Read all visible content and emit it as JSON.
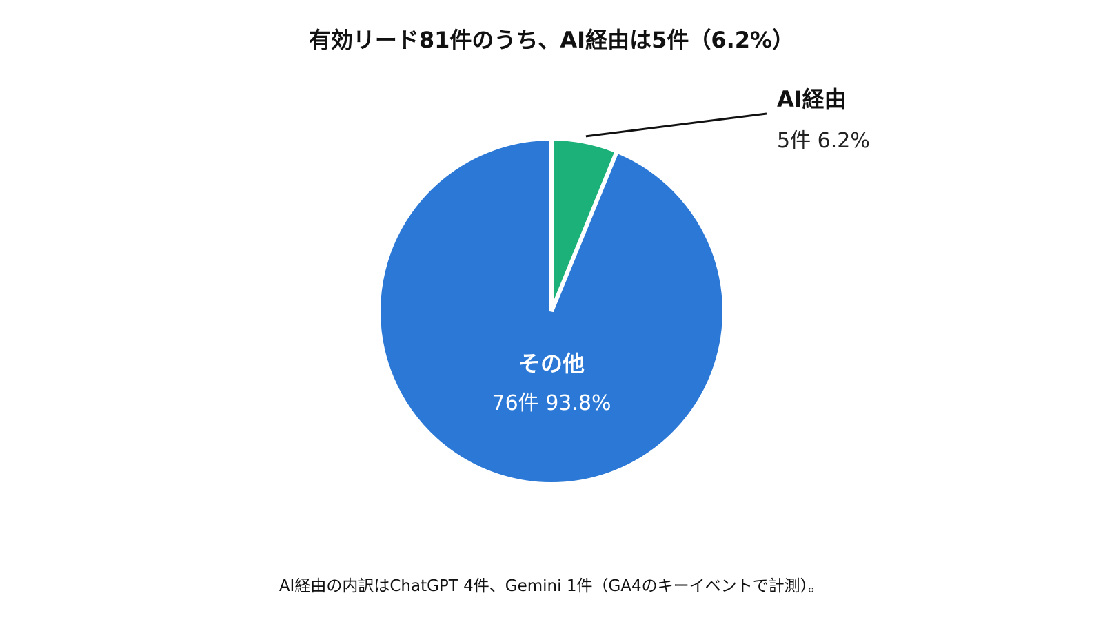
{
  "chart_data": {
    "type": "pie",
    "title": "有効リード81件のうち、AI経由は5件（6.2%）",
    "total": 81,
    "start_angle_deg": 0,
    "direction": "clockwise",
    "slices": [
      {
        "name": "AI経由",
        "value": 5,
        "percent": 6.2,
        "value_label": "5件",
        "percent_label": "6.2%",
        "color": "#1db17a",
        "label_placement": "outside-leader"
      },
      {
        "name": "その他",
        "value": 76,
        "percent": 93.8,
        "value_label": "76件",
        "percent_label": "93.8%",
        "color": "#2b78d6",
        "label_placement": "inside"
      }
    ],
    "footnote": "AI経由の内訳はChatGPT 4件、Gemini 1件（GA4のキーイベントで計測）。"
  }
}
